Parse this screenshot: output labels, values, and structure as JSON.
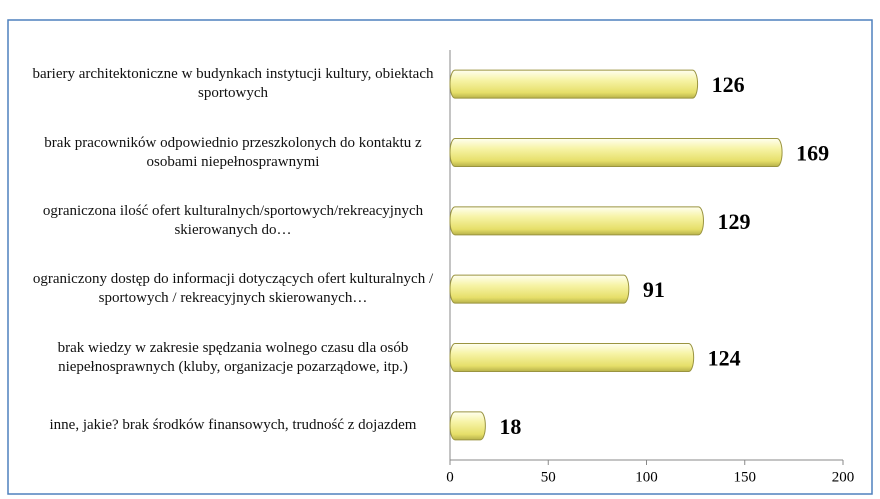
{
  "chart_data": {
    "type": "bar",
    "orientation": "horizontal",
    "categories": [
      "bariery architektoniczne w budynkach instytucji kultury, obiektach sportowych",
      "brak pracowników odpowiednio przeszkolonych do kontaktu z osobami niepełnosprawnymi",
      "ograniczona ilość ofert kulturalnych/sportowych/rekreacyjnych skierowanych do…",
      "ograniczony dostęp do informacji dotyczących ofert kulturalnych / sportowych / rekreacyjnych skierowanych…",
      "brak wiedzy w zakresie spędzania wolnego czasu dla osób niepełnosprawnych (kluby, organizacje pozarządowe, itp.)",
      "inne, jakie? brak środków finansowych, trudność z dojazdem"
    ],
    "values": [
      126,
      169,
      129,
      91,
      124,
      18
    ],
    "color": "#f2ef8f",
    "xlim": [
      0,
      200
    ],
    "xticks": [
      0,
      50,
      100,
      150,
      200
    ],
    "grid": false
  }
}
